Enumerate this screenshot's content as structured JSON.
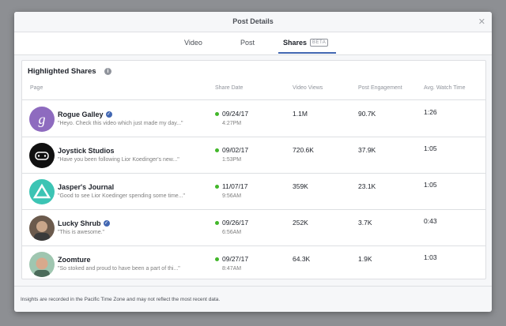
{
  "header": {
    "title": "Post Details"
  },
  "tabs": [
    {
      "label": "Video"
    },
    {
      "label": "Post"
    },
    {
      "label": "Shares",
      "badge": "BETA"
    }
  ],
  "section": {
    "title": "Highlighted Shares"
  },
  "table": {
    "columns": [
      "Page",
      "Share Date",
      "Video Views",
      "Post Engagement",
      "Avg. Watch Time"
    ],
    "rows": [
      {
        "name": "Rogue Galley",
        "verified": true,
        "quote": "\"Heyo. Check this video which just made my day...\"",
        "date": "09/24/17",
        "time": "4:27PM",
        "views": "1.1M",
        "engagement": "90.7K",
        "watch": "1:26"
      },
      {
        "name": "Joystick Studios",
        "verified": false,
        "quote": "\"Have you been following Lior Koedinger's new...\"",
        "date": "09/02/17",
        "time": "1:53PM",
        "views": "720.6K",
        "engagement": "37.9K",
        "watch": "1:05"
      },
      {
        "name": "Jasper's Journal",
        "verified": false,
        "quote": "\"Good to see Lior Koedinger spending some time...\"",
        "date": "11/07/17",
        "time": "9:56AM",
        "views": "359K",
        "engagement": "23.1K",
        "watch": "1:05"
      },
      {
        "name": "Lucky Shrub",
        "verified": true,
        "quote": "\"This is awesome.\"",
        "date": "09/26/17",
        "time": "6:56AM",
        "views": "252K",
        "engagement": "3.7K",
        "watch": "0:43"
      },
      {
        "name": "Zoomture",
        "verified": false,
        "quote": "\"So stoked and proud to have been a part of thi...\"",
        "date": "09/27/17",
        "time": "8:47AM",
        "views": "64.3K",
        "engagement": "1.9K",
        "watch": "1:03"
      }
    ]
  },
  "footer": {
    "note": "Insights are recorded in the Pacific Time Zone and may not reflect the most recent data."
  }
}
